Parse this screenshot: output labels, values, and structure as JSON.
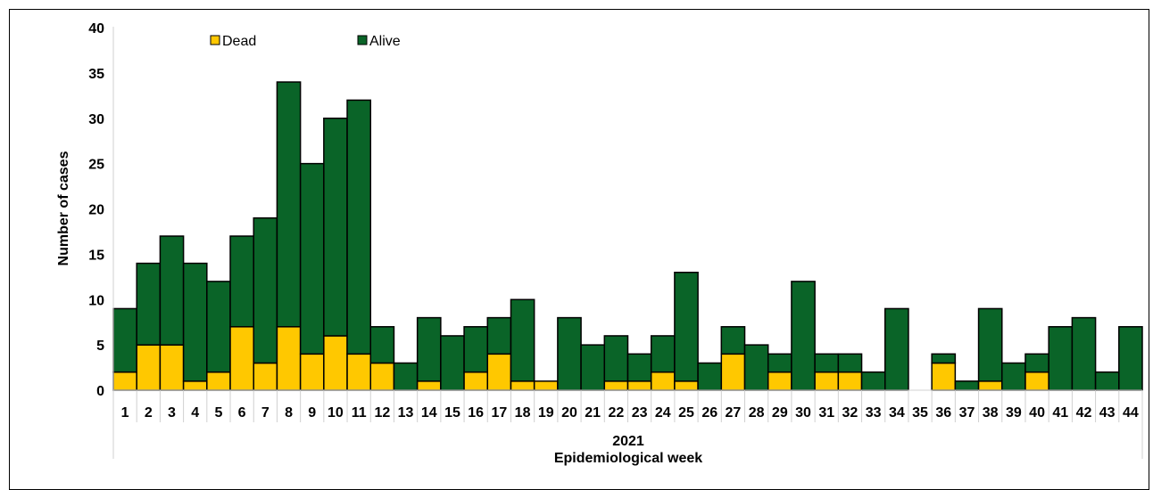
{
  "chart_data": {
    "type": "bar",
    "stacked": true,
    "categories": [
      "1",
      "2",
      "3",
      "4",
      "5",
      "6",
      "7",
      "8",
      "9",
      "10",
      "11",
      "12",
      "13",
      "14",
      "15",
      "16",
      "17",
      "18",
      "19",
      "20",
      "21",
      "22",
      "23",
      "24",
      "25",
      "26",
      "27",
      "28",
      "29",
      "30",
      "31",
      "32",
      "33",
      "34",
      "35",
      "36",
      "37",
      "38",
      "39",
      "40",
      "41",
      "42",
      "43",
      "44"
    ],
    "group_label": "2021",
    "series": [
      {
        "name": "Dead",
        "color": "#FFC800",
        "values": [
          2,
          5,
          5,
          1,
          2,
          7,
          3,
          7,
          4,
          6,
          4,
          3,
          0,
          1,
          0,
          2,
          4,
          1,
          1,
          0,
          0,
          1,
          1,
          2,
          1,
          0,
          4,
          0,
          2,
          0,
          2,
          2,
          0,
          0,
          0,
          3,
          0,
          1,
          0,
          2,
          0,
          0,
          0,
          0
        ]
      },
      {
        "name": "Alive",
        "color": "#0A6428",
        "values": [
          7,
          9,
          12,
          13,
          10,
          10,
          16,
          27,
          21,
          24,
          28,
          4,
          3,
          7,
          6,
          5,
          4,
          9,
          0,
          8,
          5,
          5,
          3,
          4,
          12,
          3,
          3,
          5,
          2,
          12,
          2,
          2,
          2,
          9,
          0,
          1,
          1,
          8,
          3,
          2,
          7,
          8,
          2,
          7
        ]
      }
    ],
    "xlabel": "Epidemiological week",
    "ylabel": "Number of cases",
    "ylim": [
      0,
      40
    ],
    "yticks": [
      "0",
      "5",
      "10",
      "15",
      "20",
      "25",
      "30",
      "35",
      "40"
    ],
    "grid": false,
    "legend": "top-left"
  }
}
